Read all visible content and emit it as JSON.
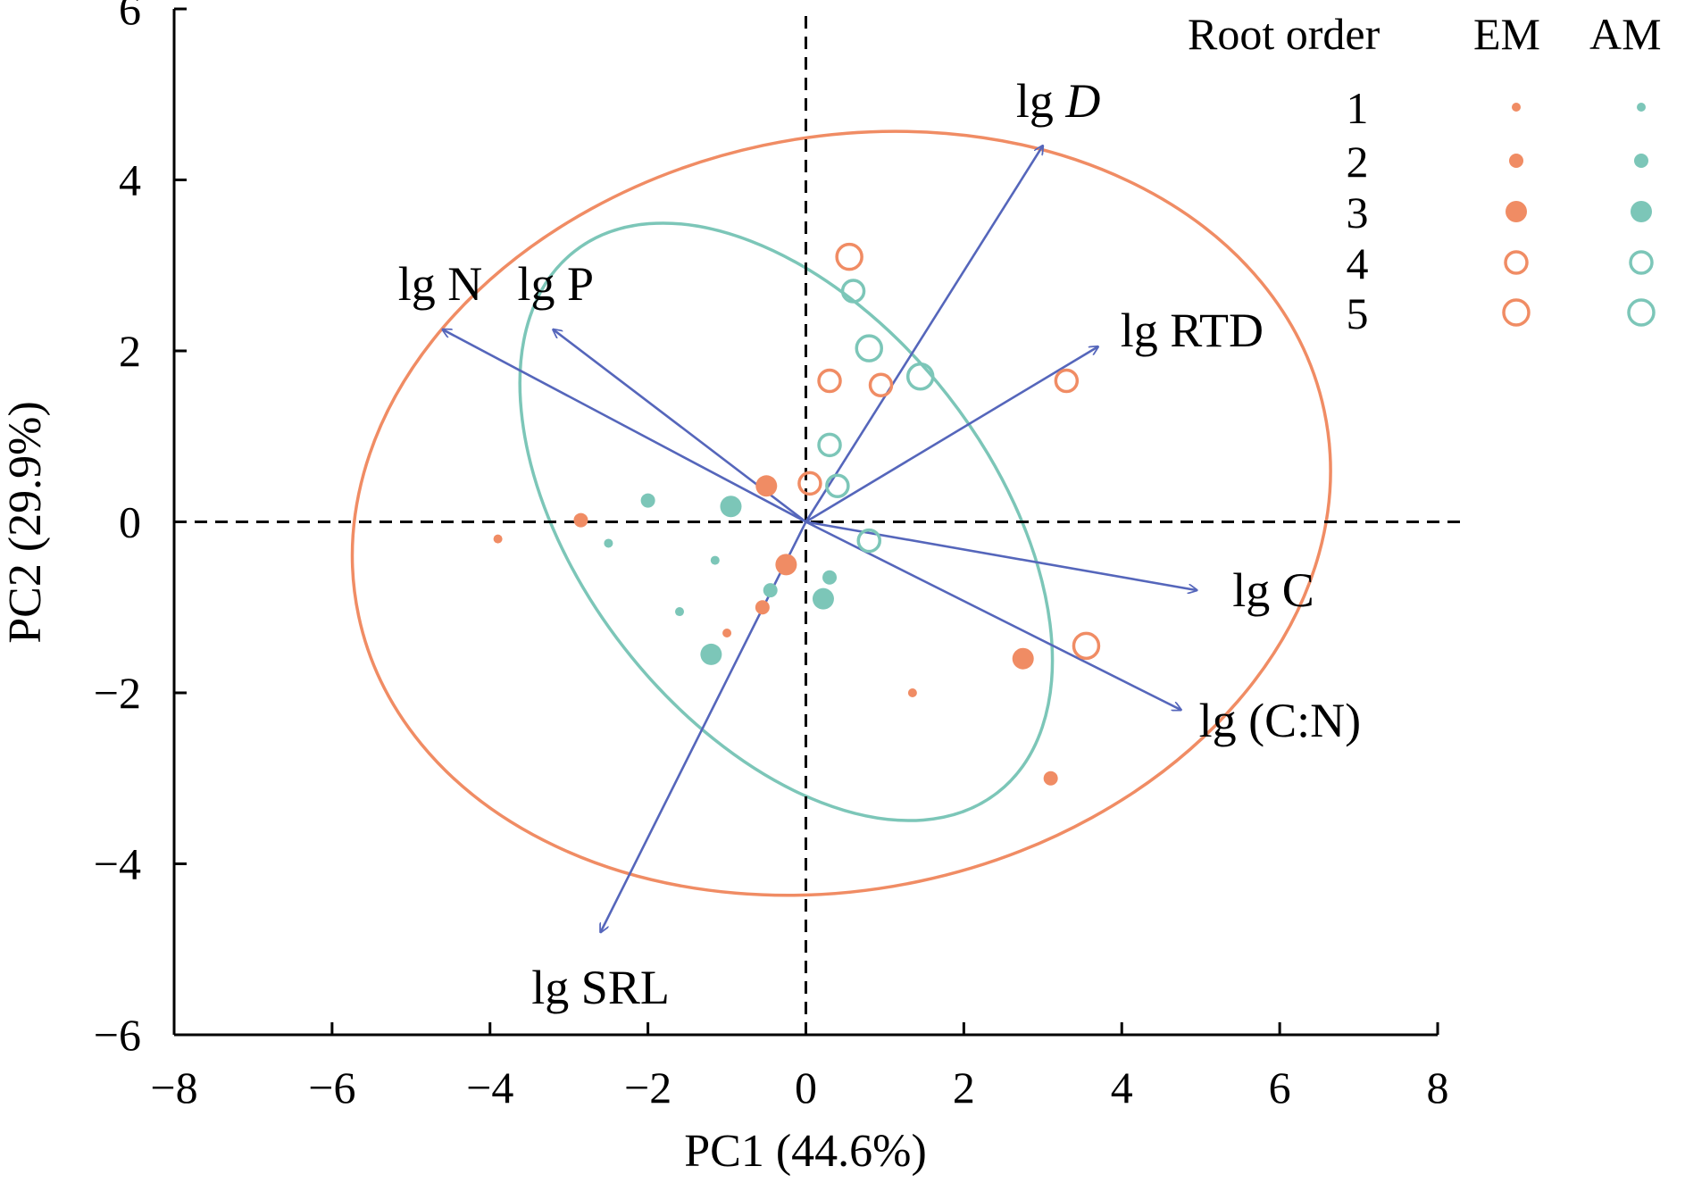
{
  "chart_data": {
    "type": "scatter",
    "title": "",
    "xlabel": "PC1 (44.6%)",
    "ylabel": "PC2 (29.9%)",
    "xlim": [
      -8,
      8
    ],
    "ylim": [
      -6,
      6
    ],
    "xticks": [
      -8,
      -6,
      -4,
      -2,
      0,
      2,
      4,
      6,
      8
    ],
    "yticks": [
      -6,
      -4,
      -2,
      0,
      2,
      4,
      6
    ],
    "xtick_labels": [
      "−8",
      "−6",
      "−4",
      "−2",
      "0",
      "2",
      "4",
      "6",
      "8"
    ],
    "ytick_labels": [
      "−6",
      "−4",
      "−2",
      "0",
      "2",
      "4",
      "6"
    ],
    "zero_lines": "dashed",
    "grid": false,
    "colors": {
      "EM": "#f08c64",
      "AM": "#7cc6b8",
      "arrow": "#5566bb"
    },
    "series": [
      {
        "name": "EM",
        "points": [
          {
            "x": -3.9,
            "y": -0.2,
            "order": 1
          },
          {
            "x": -1.0,
            "y": -1.3,
            "order": 1
          },
          {
            "x": 1.35,
            "y": -2.0,
            "order": 1
          },
          {
            "x": -2.85,
            "y": 0.02,
            "order": 2
          },
          {
            "x": -0.55,
            "y": -1.0,
            "order": 2
          },
          {
            "x": 3.1,
            "y": -3.0,
            "order": 2
          },
          {
            "x": -0.5,
            "y": 0.42,
            "order": 3
          },
          {
            "x": -0.25,
            "y": -0.5,
            "order": 3
          },
          {
            "x": 2.75,
            "y": -1.6,
            "order": 3
          },
          {
            "x": 0.05,
            "y": 0.45,
            "order": 4
          },
          {
            "x": 0.3,
            "y": 1.65,
            "order": 4
          },
          {
            "x": 0.95,
            "y": 1.6,
            "order": 4
          },
          {
            "x": 3.3,
            "y": 1.65,
            "order": 4
          },
          {
            "x": 0.55,
            "y": 3.1,
            "order": 5
          },
          {
            "x": 3.55,
            "y": -1.45,
            "order": 5
          }
        ]
      },
      {
        "name": "AM",
        "points": [
          {
            "x": -2.5,
            "y": -0.25,
            "order": 1
          },
          {
            "x": -1.15,
            "y": -0.45,
            "order": 1
          },
          {
            "x": -1.6,
            "y": -1.05,
            "order": 1
          },
          {
            "x": -2.0,
            "y": 0.25,
            "order": 2
          },
          {
            "x": -0.45,
            "y": -0.8,
            "order": 2
          },
          {
            "x": 0.3,
            "y": -0.65,
            "order": 2
          },
          {
            "x": -0.95,
            "y": 0.18,
            "order": 3
          },
          {
            "x": -1.2,
            "y": -1.55,
            "order": 3
          },
          {
            "x": 0.22,
            "y": -0.9,
            "order": 3
          },
          {
            "x": 0.6,
            "y": 2.7,
            "order": 4
          },
          {
            "x": 0.3,
            "y": 0.9,
            "order": 4
          },
          {
            "x": 0.4,
            "y": 0.42,
            "order": 4
          },
          {
            "x": 0.8,
            "y": -0.22,
            "order": 4
          },
          {
            "x": 0.8,
            "y": 2.03,
            "order": 5
          },
          {
            "x": 1.45,
            "y": 1.7,
            "order": 5
          }
        ]
      }
    ],
    "loadings": [
      {
        "label": "lg ",
        "label_italic": "D",
        "x": 3.0,
        "y": 4.4
      },
      {
        "label": "lg N",
        "x": -4.6,
        "y": 2.25
      },
      {
        "label": "lg P",
        "x": -3.2,
        "y": 2.25
      },
      {
        "label": "lg RTD",
        "x": 3.7,
        "y": 2.05
      },
      {
        "label": "lg C",
        "x": 4.95,
        "y": -0.8
      },
      {
        "label": "lg (C:N)",
        "x": 4.75,
        "y": -2.2
      },
      {
        "label": "lg SRL",
        "x": -2.6,
        "y": -4.8
      }
    ],
    "ellipses": [
      {
        "group": "EM",
        "center": [
          0.45,
          0.1
        ],
        "semi_axes": [
          6.25,
          4.4
        ],
        "angle_deg": -12
      },
      {
        "group": "AM",
        "center": [
          -0.25,
          0.0
        ],
        "semi_axes": [
          4.35,
          2.4
        ],
        "angle_deg": 52
      }
    ],
    "legend": {
      "position": "top-right",
      "title": "Root order",
      "columns": [
        "EM",
        "AM"
      ],
      "orders": [
        "1",
        "2",
        "3",
        "4",
        "5"
      ]
    }
  }
}
